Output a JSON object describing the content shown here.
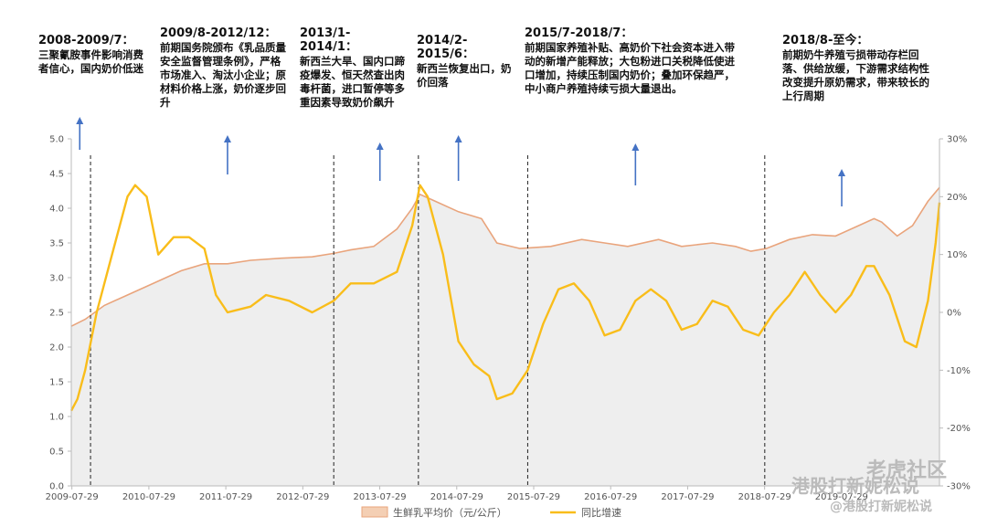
{
  "annotations": [
    {
      "period": "2008-2009/7：",
      "text": "三聚氰胺事件影响消费者信心，国内奶价低迷"
    },
    {
      "period": "2009/8-2012/12：",
      "text": "前期国务院颁布《乳品质量安全监督管理条例》，严格市场准入、淘汰小企业；原材料价格上涨，奶价逐步回升"
    },
    {
      "period": "2013/1-2014/1：",
      "text": "新西兰大旱、国内口蹄疫爆发、恒天然查出肉毒杆菌，进口暂停等多重因素导致奶价飙升"
    },
    {
      "period": "2014/2-2015/6：",
      "text": "新西兰恢复出口，奶价回落"
    },
    {
      "period": "2015/7-2018/7：",
      "text": "前期国家养殖补贴、高奶价下社会资本进入带动的新增产能释放；大包粉进口关税降低使进口增加，持续压制国内奶价；叠加环保趋严，中小商户养殖持续亏损大量退出。"
    },
    {
      "period": "2018/8-至今：",
      "text": "前期奶牛养殖亏损带动存栏回落、供给放缓，下游需求结构性改变提升原奶需求，带来较长的上行周期"
    }
  ],
  "chart_data": {
    "type": "area",
    "x_tick_labels": [
      "2009-07-29",
      "2010-07-29",
      "2011-07-29",
      "2012-07-29",
      "2013-07-29",
      "2014-07-29",
      "2015-07-29",
      "2016-07-29",
      "2017-07-29",
      "2018-07-29",
      "2019-07-29"
    ],
    "x_range": [
      2009.57,
      2020.85
    ],
    "y_left": {
      "ticks": [
        "0.0",
        "0.5",
        "1.0",
        "1.5",
        "2.0",
        "2.5",
        "3.0",
        "3.5",
        "4.0",
        "4.5",
        "5.0"
      ],
      "min": 0,
      "max": 5
    },
    "y_right": {
      "ticks": [
        "-30%",
        "-20%",
        "-10%",
        "0%",
        "10%",
        "20%",
        "30%"
      ],
      "min": -30,
      "max": 30
    },
    "divider_years": [
      2009.82,
      2012.98,
      2014.08,
      2015.5,
      2018.58
    ],
    "arrow_years": [
      2009.68,
      2011.6,
      2013.58,
      2014.6,
      2016.9,
      2019.58
    ],
    "series": [
      {
        "name": "生鲜乳平均价（元/公斤）",
        "axis": "left",
        "kind": "area",
        "color": "#e9a47c",
        "fill": "#eeeeee",
        "points": [
          [
            2009.57,
            2.3
          ],
          [
            2009.75,
            2.4
          ],
          [
            2010.0,
            2.6
          ],
          [
            2010.3,
            2.75
          ],
          [
            2010.6,
            2.9
          ],
          [
            2011.0,
            3.1
          ],
          [
            2011.3,
            3.2
          ],
          [
            2011.6,
            3.2
          ],
          [
            2011.9,
            3.25
          ],
          [
            2012.3,
            3.28
          ],
          [
            2012.7,
            3.3
          ],
          [
            2012.98,
            3.35
          ],
          [
            2013.2,
            3.4
          ],
          [
            2013.5,
            3.45
          ],
          [
            2013.8,
            3.7
          ],
          [
            2014.0,
            4.0
          ],
          [
            2014.1,
            4.2
          ],
          [
            2014.3,
            4.1
          ],
          [
            2014.6,
            3.95
          ],
          [
            2014.9,
            3.85
          ],
          [
            2015.1,
            3.5
          ],
          [
            2015.4,
            3.42
          ],
          [
            2015.8,
            3.45
          ],
          [
            2016.2,
            3.55
          ],
          [
            2016.5,
            3.5
          ],
          [
            2016.8,
            3.45
          ],
          [
            2017.2,
            3.55
          ],
          [
            2017.5,
            3.45
          ],
          [
            2017.9,
            3.5
          ],
          [
            2018.2,
            3.45
          ],
          [
            2018.4,
            3.38
          ],
          [
            2018.6,
            3.42
          ],
          [
            2018.9,
            3.55
          ],
          [
            2019.2,
            3.62
          ],
          [
            2019.5,
            3.6
          ],
          [
            2019.8,
            3.75
          ],
          [
            2020.0,
            3.85
          ],
          [
            2020.1,
            3.8
          ],
          [
            2020.3,
            3.6
          ],
          [
            2020.5,
            3.75
          ],
          [
            2020.7,
            4.1
          ],
          [
            2020.85,
            4.3
          ]
        ]
      },
      {
        "name": "同比增速",
        "axis": "right",
        "kind": "line",
        "color": "#f9bd1a",
        "points": [
          [
            2009.57,
            -17
          ],
          [
            2009.65,
            -15
          ],
          [
            2009.75,
            -10
          ],
          [
            2009.9,
            0
          ],
          [
            2010.1,
            10
          ],
          [
            2010.3,
            20
          ],
          [
            2010.4,
            22
          ],
          [
            2010.55,
            20
          ],
          [
            2010.7,
            10
          ],
          [
            2010.9,
            13
          ],
          [
            2011.1,
            13
          ],
          [
            2011.3,
            11
          ],
          [
            2011.45,
            3
          ],
          [
            2011.6,
            0
          ],
          [
            2011.9,
            1
          ],
          [
            2012.1,
            3
          ],
          [
            2012.4,
            2
          ],
          [
            2012.7,
            0
          ],
          [
            2012.98,
            2
          ],
          [
            2013.2,
            5
          ],
          [
            2013.5,
            5
          ],
          [
            2013.8,
            7
          ],
          [
            2014.0,
            15
          ],
          [
            2014.1,
            22
          ],
          [
            2014.2,
            20
          ],
          [
            2014.4,
            10
          ],
          [
            2014.6,
            -5
          ],
          [
            2014.8,
            -9
          ],
          [
            2015.0,
            -11
          ],
          [
            2015.1,
            -15
          ],
          [
            2015.3,
            -14
          ],
          [
            2015.5,
            -10
          ],
          [
            2015.7,
            -2
          ],
          [
            2015.9,
            4
          ],
          [
            2016.1,
            5
          ],
          [
            2016.3,
            2
          ],
          [
            2016.5,
            -4
          ],
          [
            2016.7,
            -3
          ],
          [
            2016.9,
            2
          ],
          [
            2017.1,
            4
          ],
          [
            2017.3,
            2
          ],
          [
            2017.5,
            -3
          ],
          [
            2017.7,
            -2
          ],
          [
            2017.9,
            2
          ],
          [
            2018.1,
            1
          ],
          [
            2018.3,
            -3
          ],
          [
            2018.5,
            -4
          ],
          [
            2018.7,
            0
          ],
          [
            2018.9,
            3
          ],
          [
            2019.1,
            7
          ],
          [
            2019.3,
            3
          ],
          [
            2019.5,
            0
          ],
          [
            2019.7,
            3
          ],
          [
            2019.9,
            8
          ],
          [
            2020.0,
            8
          ],
          [
            2020.2,
            3
          ],
          [
            2020.4,
            -5
          ],
          [
            2020.55,
            -6
          ],
          [
            2020.7,
            2
          ],
          [
            2020.8,
            12
          ],
          [
            2020.85,
            19
          ]
        ]
      }
    ]
  },
  "legend": [
    {
      "label": "生鲜乳平均价（元/公斤）",
      "kind": "area",
      "color": "#e9a47c",
      "fill": "#f4cfb4"
    },
    {
      "label": "同比增速",
      "kind": "line",
      "color": "#f9bd1a"
    }
  ],
  "watermark": {
    "main": "港股打新妮松说",
    "corner": "老虎社区",
    "bottom": "@港股打新妮松说"
  }
}
